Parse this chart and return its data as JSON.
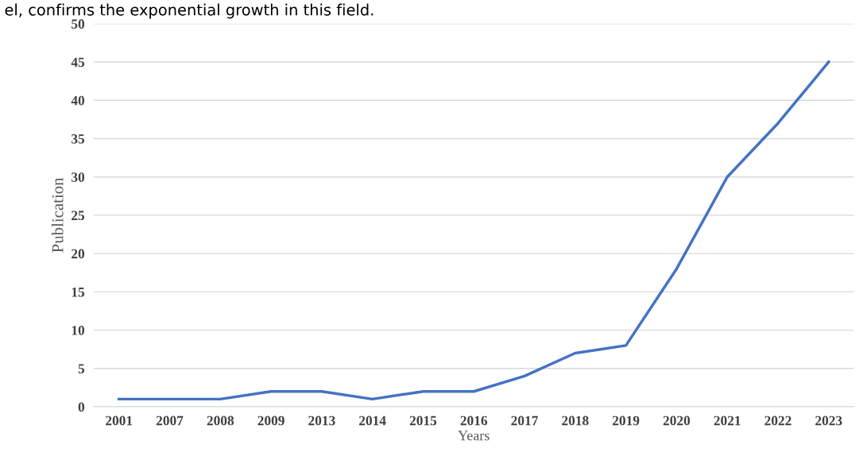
{
  "chart_data": {
    "type": "line",
    "xlabel": "Years",
    "ylabel": "Publication",
    "annotations": [
      "el, confirms the exponential growth in this field."
    ],
    "categories": [
      "2001",
      "2007",
      "2008",
      "2009",
      "2013",
      "2014",
      "2015",
      "2016",
      "2017",
      "2018",
      "2019",
      "2020",
      "2021",
      "2022",
      "2023"
    ],
    "series": [
      {
        "color": "#4472c4",
        "values": [
          1,
          1,
          1,
          2,
          2,
          1,
          2,
          2,
          4,
          7,
          8,
          18,
          30,
          37,
          45
        ]
      }
    ],
    "ylim": [
      0,
      50
    ],
    "yticks": [
      0,
      5,
      10,
      15,
      20,
      25,
      30,
      35,
      40,
      45,
      50
    ],
    "grid": "y",
    "legend": false,
    "marker": "none",
    "line_style": "solid"
  }
}
